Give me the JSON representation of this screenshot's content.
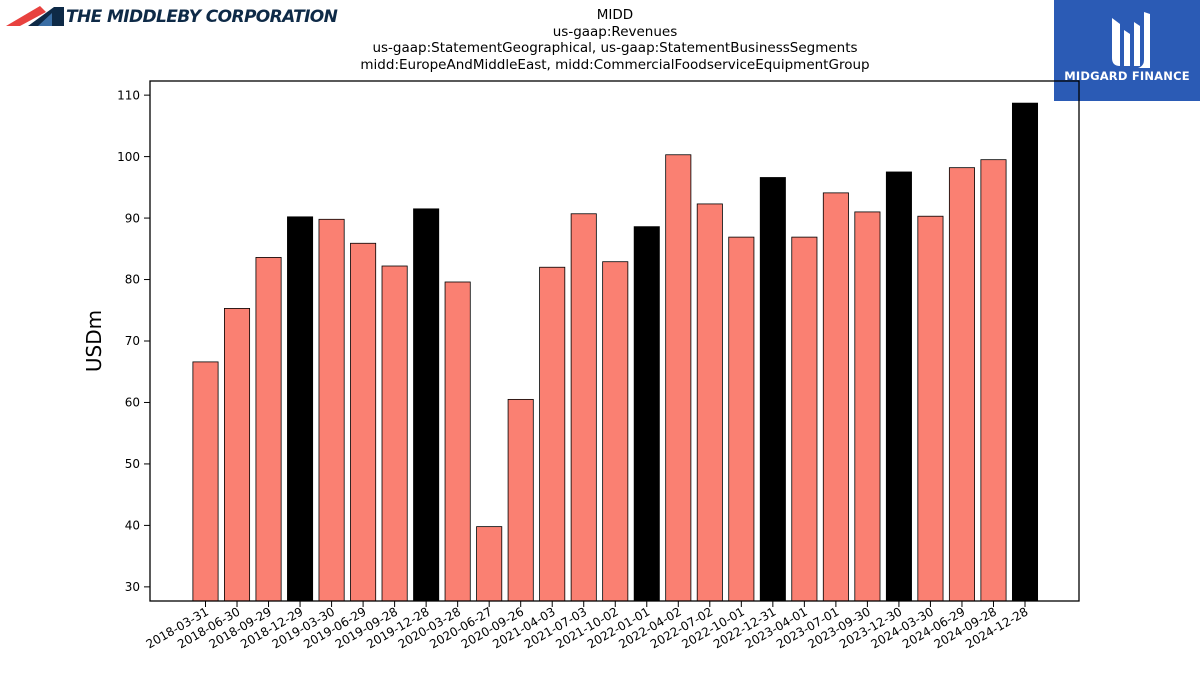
{
  "company_logo": {
    "text": "THE MIDDLEBY CORPORATION",
    "icon": "red-navy-swoosh-icon"
  },
  "brand_badge": {
    "text": "MIDGARD FINANCE",
    "icon": "midgard-mark-icon",
    "color": "#2b5bb5"
  },
  "colors": {
    "bar_regular": "#fa8072",
    "bar_highlight": "#000000",
    "bar_edge": "#000000"
  },
  "chart_data": {
    "type": "bar",
    "title_lines": [
      "MIDD",
      "us-gaap:Revenues",
      "us-gaap:StatementGeographical, us-gaap:StatementBusinessSegments",
      "midd:EuropeAndMiddleEast, midd:CommercialFoodserviceEquipmentGroup"
    ],
    "xlabel": "",
    "ylabel": "USDm",
    "ylim": [
      27.7,
      112.3
    ],
    "yticks": [
      30,
      40,
      50,
      60,
      70,
      80,
      90,
      100,
      110
    ],
    "grid": false,
    "categories": [
      "2018-03-31",
      "2018-06-30",
      "2018-09-29",
      "2018-12-29",
      "2019-03-30",
      "2019-06-29",
      "2019-09-28",
      "2019-12-28",
      "2020-03-28",
      "2020-06-27",
      "2020-09-26",
      "2021-04-03",
      "2021-07-03",
      "2021-10-02",
      "2022-01-01",
      "2022-04-02",
      "2022-07-02",
      "2022-10-01",
      "2022-12-31",
      "2023-04-01",
      "2023-07-01",
      "2023-09-30",
      "2023-12-30",
      "2024-03-30",
      "2024-06-29",
      "2024-09-28",
      "2024-12-28"
    ],
    "values": [
      66.6,
      75.3,
      83.6,
      90.2,
      89.8,
      85.9,
      82.2,
      91.5,
      79.6,
      39.8,
      60.5,
      82.0,
      90.7,
      82.9,
      88.6,
      100.3,
      92.3,
      86.9,
      96.6,
      86.9,
      94.1,
      91.0,
      97.5,
      90.3,
      98.2,
      99.5,
      108.7
    ],
    "highlighted": [
      3,
      7,
      14,
      18,
      22,
      26
    ]
  }
}
